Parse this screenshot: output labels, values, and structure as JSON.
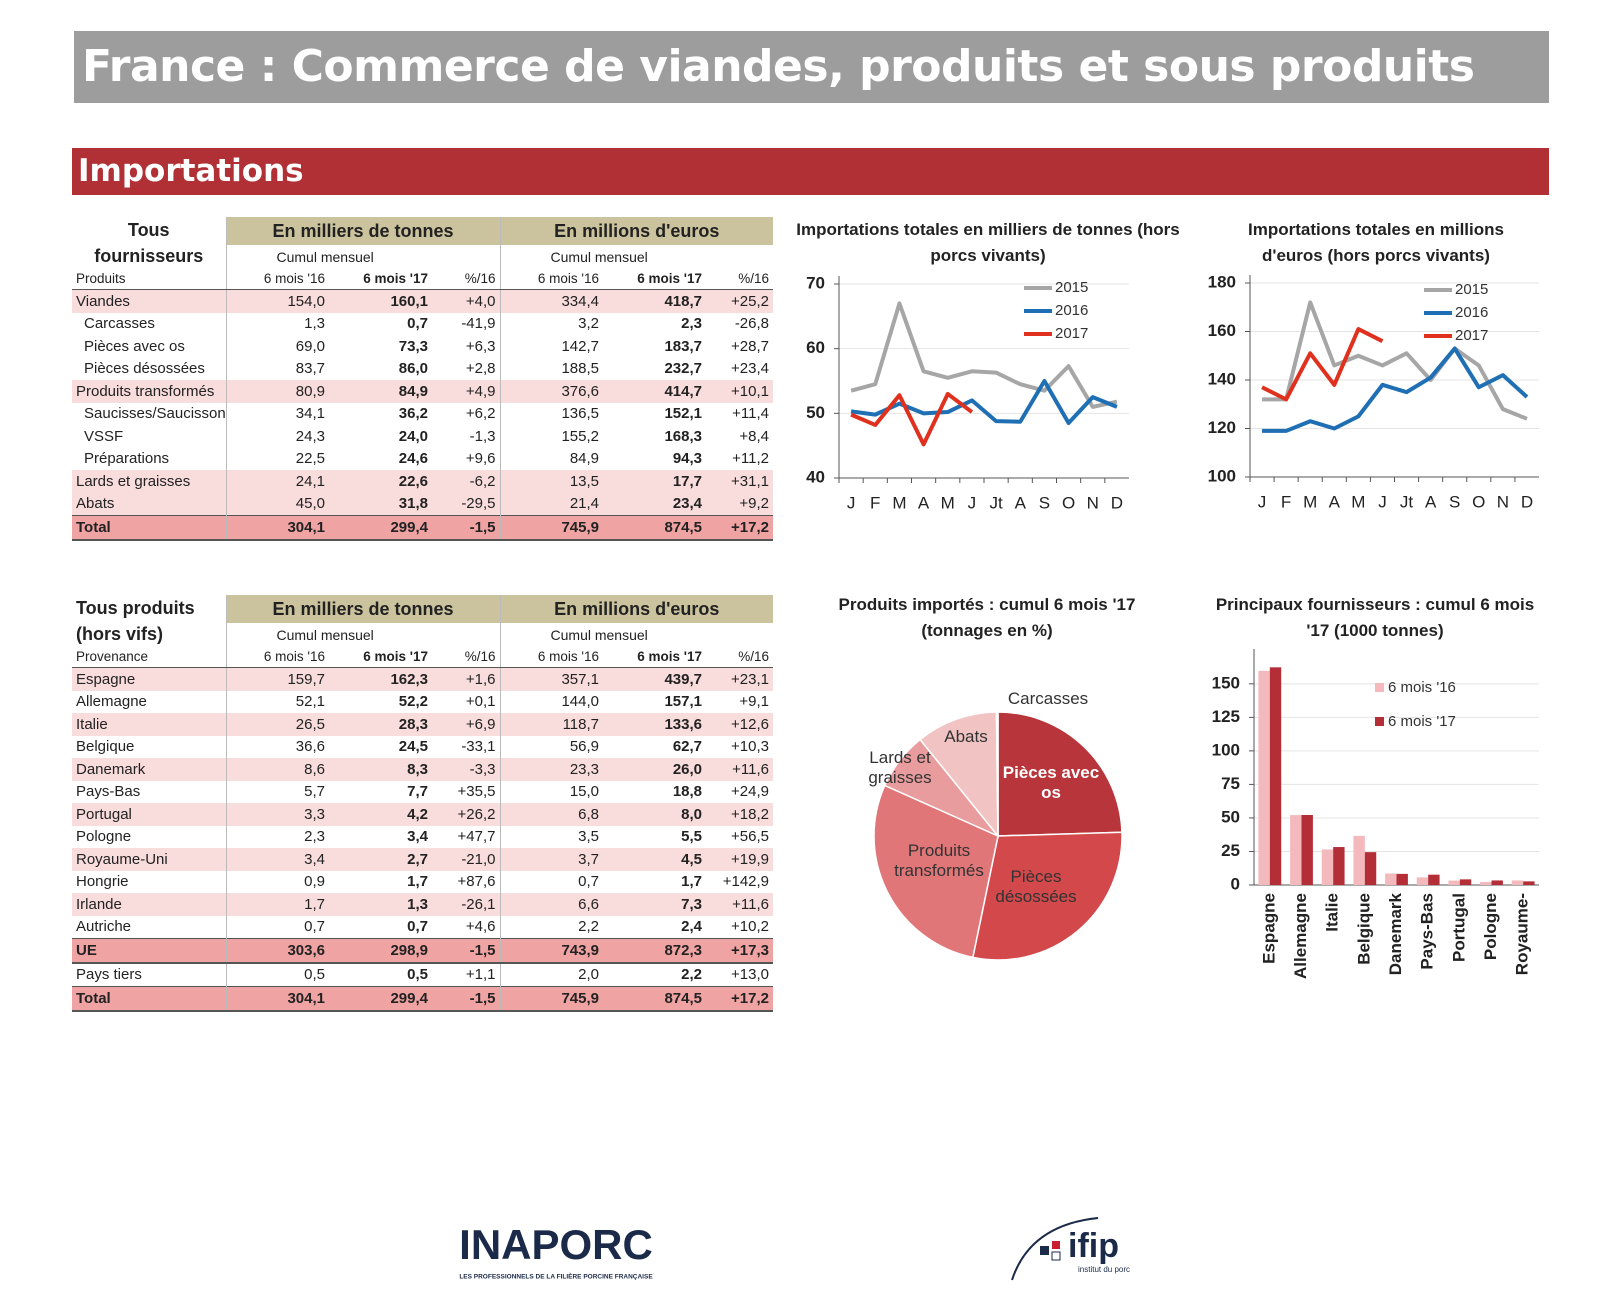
{
  "header": {
    "title": "France : Commerce de viandes, produits et sous produits"
  },
  "section": {
    "title": "Importations"
  },
  "table1": {
    "corner": "Tous fournisseurs",
    "groups": [
      "En milliers de tonnes",
      "En millions d'euros"
    ],
    "sub": [
      "Cumul mensuel",
      "Cumul mensuel"
    ],
    "row_header": "Produits",
    "columns": [
      "6 mois '16",
      "6 mois '17",
      "%/16",
      "6 mois '16",
      "6 mois '17",
      "%/16"
    ],
    "rows": [
      {
        "label": "Viandes",
        "cells": [
          "154,0",
          "160,1",
          "+4,0",
          "334,4",
          "418,7",
          "+25,2"
        ],
        "items": [
          {
            "label": "Carcasses",
            "cells": [
              "1,3",
              "0,7",
              "-41,9",
              "3,2",
              "2,3",
              "-26,8"
            ]
          },
          {
            "label": "Pièces avec os",
            "cells": [
              "69,0",
              "73,3",
              "+6,3",
              "142,7",
              "183,7",
              "+28,7"
            ]
          },
          {
            "label": "Pièces désossées",
            "cells": [
              "83,7",
              "86,0",
              "+2,8",
              "188,5",
              "232,7",
              "+23,4"
            ]
          }
        ]
      },
      {
        "label": "Produits transformés",
        "cells": [
          "80,9",
          "84,9",
          "+4,9",
          "376,6",
          "414,7",
          "+10,1"
        ],
        "items": [
          {
            "label": "Saucisses/Saucisson",
            "cells": [
              "34,1",
              "36,2",
              "+6,2",
              "136,5",
              "152,1",
              "+11,4"
            ]
          },
          {
            "label": "VSSF",
            "cells": [
              "24,3",
              "24,0",
              "-1,3",
              "155,2",
              "168,3",
              "+8,4"
            ]
          },
          {
            "label": "Préparations",
            "cells": [
              "22,5",
              "24,6",
              "+9,6",
              "84,9",
              "94,3",
              "+11,2"
            ]
          }
        ]
      },
      {
        "label": "Lards et graisses",
        "cells": [
          "24,1",
          "22,6",
          "-6,2",
          "13,5",
          "17,7",
          "+31,1"
        ],
        "items": []
      },
      {
        "label": "Abats",
        "cells": [
          "45,0",
          "31,8",
          "-29,5",
          "21,4",
          "23,4",
          "+9,2"
        ],
        "items": []
      }
    ],
    "total": {
      "label": "Total",
      "cells": [
        "304,1",
        "299,4",
        "-1,5",
        "745,9",
        "874,5",
        "+17,2"
      ]
    }
  },
  "table2": {
    "corner": "Tous produits (hors vifs)",
    "groups": [
      "En milliers de tonnes",
      "En millions d'euros"
    ],
    "sub": [
      "Cumul mensuel",
      "Cumul mensuel"
    ],
    "row_header": "Provenance",
    "columns": [
      "6 mois '16",
      "6 mois '17",
      "%/16",
      "6 mois '16",
      "6 mois '17",
      "%/16"
    ],
    "rows": [
      {
        "label": "Espagne",
        "cells": [
          "159,7",
          "162,3",
          "+1,6",
          "357,1",
          "439,7",
          "+23,1"
        ]
      },
      {
        "label": "Allemagne",
        "cells": [
          "52,1",
          "52,2",
          "+0,1",
          "144,0",
          "157,1",
          "+9,1"
        ]
      },
      {
        "label": "Italie",
        "cells": [
          "26,5",
          "28,3",
          "+6,9",
          "118,7",
          "133,6",
          "+12,6"
        ]
      },
      {
        "label": "Belgique",
        "cells": [
          "36,6",
          "24,5",
          "-33,1",
          "56,9",
          "62,7",
          "+10,3"
        ]
      },
      {
        "label": "Danemark",
        "cells": [
          "8,6",
          "8,3",
          "-3,3",
          "23,3",
          "26,0",
          "+11,6"
        ]
      },
      {
        "label": "Pays-Bas",
        "cells": [
          "5,7",
          "7,7",
          "+35,5",
          "15,0",
          "18,8",
          "+24,9"
        ]
      },
      {
        "label": "Portugal",
        "cells": [
          "3,3",
          "4,2",
          "+26,2",
          "6,8",
          "8,0",
          "+18,2"
        ]
      },
      {
        "label": "Pologne",
        "cells": [
          "2,3",
          "3,4",
          "+47,7",
          "3,5",
          "5,5",
          "+56,5"
        ]
      },
      {
        "label": "Royaume-Uni",
        "cells": [
          "3,4",
          "2,7",
          "-21,0",
          "3,7",
          "4,5",
          "+19,9"
        ]
      },
      {
        "label": "Hongrie",
        "cells": [
          "0,9",
          "1,7",
          "+87,6",
          "0,7",
          "1,7",
          "+142,9"
        ]
      },
      {
        "label": "Irlande",
        "cells": [
          "1,7",
          "1,3",
          "-26,1",
          "6,6",
          "7,3",
          "+11,6"
        ]
      },
      {
        "label": "Autriche",
        "cells": [
          "0,7",
          "0,7",
          "+4,6",
          "2,2",
          "2,4",
          "+10,2"
        ]
      }
    ],
    "ue": {
      "label": "UE",
      "cells": [
        "303,6",
        "298,9",
        "-1,5",
        "743,9",
        "872,3",
        "+17,3"
      ]
    },
    "tiers": {
      "label": "Pays tiers",
      "cells": [
        "0,5",
        "0,5",
        "+1,1",
        "2,0",
        "2,2",
        "+13,0"
      ]
    },
    "total": {
      "label": "Total",
      "cells": [
        "304,1",
        "299,4",
        "-1,5",
        "745,9",
        "874,5",
        "+17,2"
      ]
    }
  },
  "chart_data": [
    {
      "type": "line",
      "title": "Importations totales en milliers de tonnes (hors porcs vivants)",
      "categories": [
        "J",
        "F",
        "M",
        "A",
        "M",
        "J",
        "Jt",
        "A",
        "S",
        "O",
        "N",
        "D"
      ],
      "ylim": [
        40,
        70
      ],
      "yticks": [
        40,
        50,
        60,
        70
      ],
      "grid": true,
      "legend": "top-right",
      "series": [
        {
          "name": "2015",
          "color": "#a6a6a6",
          "values": [
            53.5,
            54.5,
            67,
            56.5,
            55.5,
            56.5,
            56.3,
            54.5,
            53.5,
            57.3,
            51,
            51.8
          ]
        },
        {
          "name": "2016",
          "color": "#1f6fb4",
          "values": [
            50.3,
            49.8,
            51.5,
            50,
            50.2,
            52,
            48.8,
            48.7,
            55,
            48.5,
            52.5,
            51
          ]
        },
        {
          "name": "2017",
          "color": "#e0301e",
          "values": [
            49.8,
            48.2,
            52.8,
            45.2,
            53,
            50.2,
            null,
            null,
            null,
            null,
            null,
            null
          ]
        }
      ]
    },
    {
      "type": "line",
      "title": "Importations totales en millions d'euros (hors porcs vivants)",
      "categories": [
        "J",
        "F",
        "M",
        "A",
        "M",
        "J",
        "Jt",
        "A",
        "S",
        "O",
        "N",
        "D"
      ],
      "ylim": [
        100,
        180
      ],
      "yticks": [
        100,
        120,
        140,
        160,
        180
      ],
      "grid": true,
      "legend": "top-right",
      "series": [
        {
          "name": "2015",
          "color": "#a6a6a6",
          "values": [
            132,
            132,
            172,
            146,
            150,
            146,
            151,
            140,
            153,
            146,
            128,
            124
          ]
        },
        {
          "name": "2016",
          "color": "#1f6fb4",
          "values": [
            119,
            119,
            123,
            120,
            125,
            138,
            135,
            141,
            153,
            137,
            142,
            133
          ]
        },
        {
          "name": "2017",
          "color": "#e0301e",
          "values": [
            137,
            132,
            151,
            138,
            161,
            156,
            null,
            null,
            null,
            null,
            null,
            null
          ]
        }
      ]
    },
    {
      "type": "pie",
      "title": "Produits importés : cumul 6 mois '17 (tonnages en %)",
      "categories": [
        "Pièces avec os",
        "Pièces désossées",
        "Produits transformés",
        "Lards et graisses",
        "Abats",
        "Carcasses"
      ],
      "values": [
        24.5,
        28.7,
        28.4,
        7.5,
        10.6,
        0.2
      ],
      "colors": [
        "#b8363b",
        "#d2484b",
        "#e07678",
        "#e99c9d",
        "#f1c3c3",
        "#f8e0e0"
      ]
    },
    {
      "type": "bar",
      "title": "Principaux fournisseurs : cumul 6 mois '17 (1000 tonnes)",
      "categories": [
        "Espagne",
        "Allemagne",
        "Italie",
        "Belgique",
        "Danemark",
        "Pays-Bas",
        "Portugal",
        "Pologne",
        "Royaume-"
      ],
      "ylim": [
        0,
        170
      ],
      "yticks": [
        0,
        25,
        50,
        75,
        100,
        125,
        150
      ],
      "grid": true,
      "legend": "top-right",
      "series": [
        {
          "name": "6 mois '16",
          "color": "#f4b9bc",
          "values": [
            159.7,
            52.1,
            26.5,
            36.6,
            8.6,
            5.7,
            3.3,
            2.3,
            3.4
          ]
        },
        {
          "name": "6 mois '17",
          "color": "#b42e37",
          "values": [
            162.3,
            52.2,
            28.3,
            24.5,
            8.3,
            7.7,
            4.2,
            3.4,
            2.7
          ]
        }
      ]
    }
  ],
  "logos": {
    "inaporc": "INAPORC",
    "inaporc_tagline": "LES PROFESSIONNELS DE LA FILIÈRE PORCINE FRANÇAISE",
    "ifip": "ifip",
    "ifip_tagline": "institut du porc"
  }
}
